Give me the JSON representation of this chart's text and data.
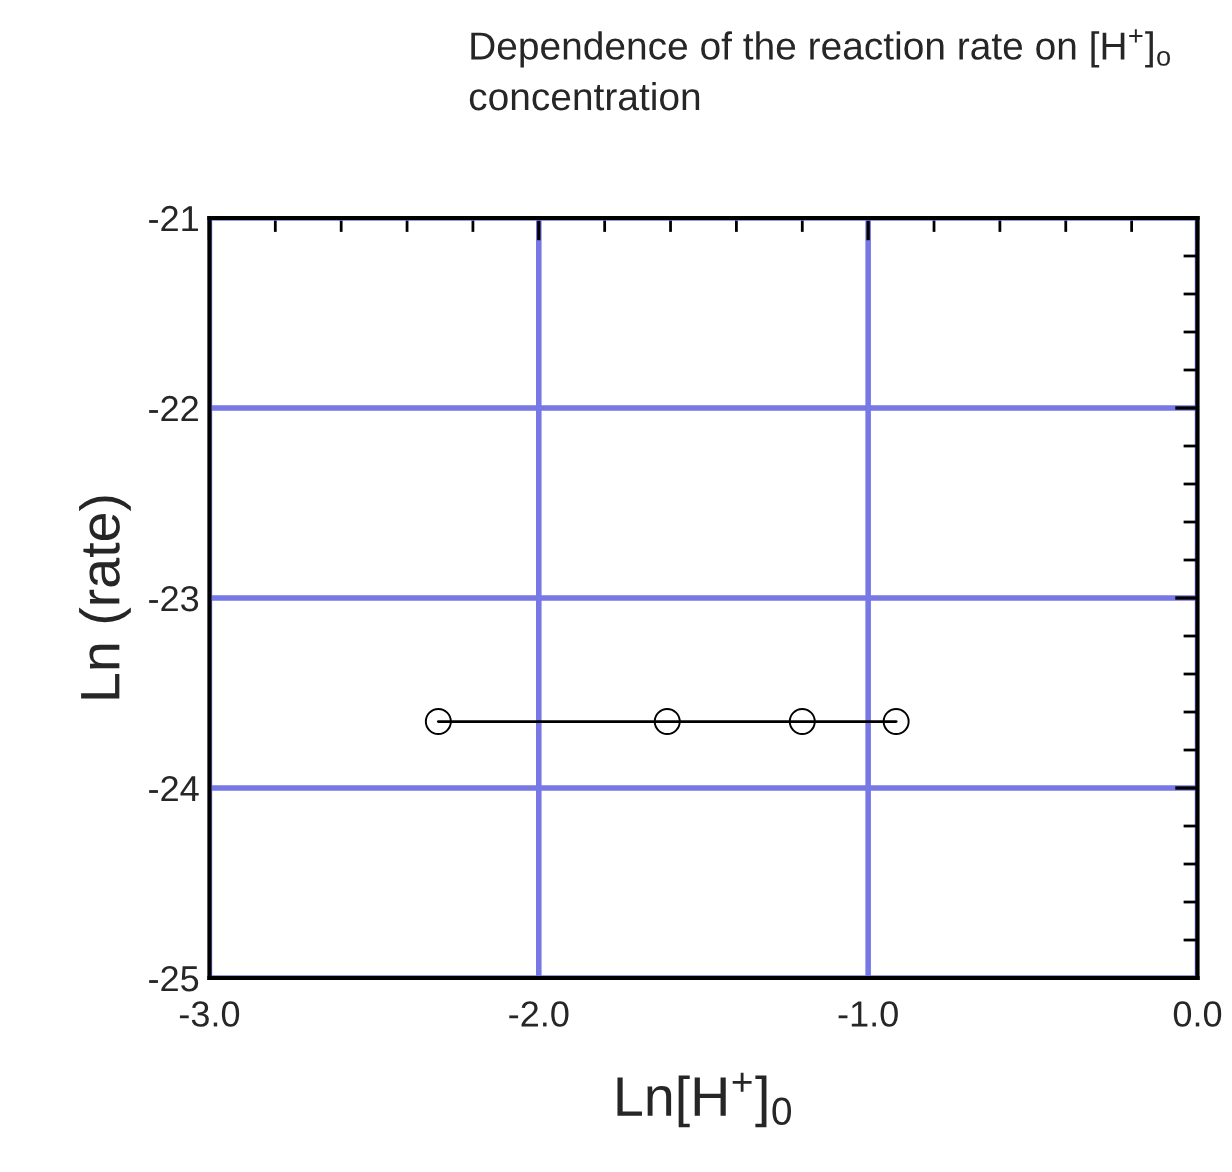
{
  "chart_data": {
    "type": "line",
    "title": "Dependence of the reaction rate on [H$^{+}$]$_{o}$ concentration",
    "xlabel": "Ln[H$^{+}$]$_{0}$",
    "ylabel": "Ln (rate)",
    "x": [
      -2.305,
      -1.61,
      -1.2,
      -0.915
    ],
    "series": [
      {
        "color": "#000000",
        "values": [
          -23.65,
          -23.65,
          -23.65,
          -23.65
        ]
      }
    ],
    "marker": "circle",
    "line_style": "solid",
    "xlim": [
      -3.0,
      0.0
    ],
    "xticks": [
      {
        "value": -3.0,
        "label": "-3.0"
      },
      {
        "value": -2.0,
        "label": "-2.0"
      },
      {
        "value": -1.0,
        "label": "-1.0"
      },
      {
        "value": 0.0,
        "label": "0.0"
      }
    ],
    "ylim": [
      -25,
      -21
    ],
    "yticks": [
      -25,
      -24,
      -23,
      -22,
      -21
    ],
    "grid": true
  }
}
